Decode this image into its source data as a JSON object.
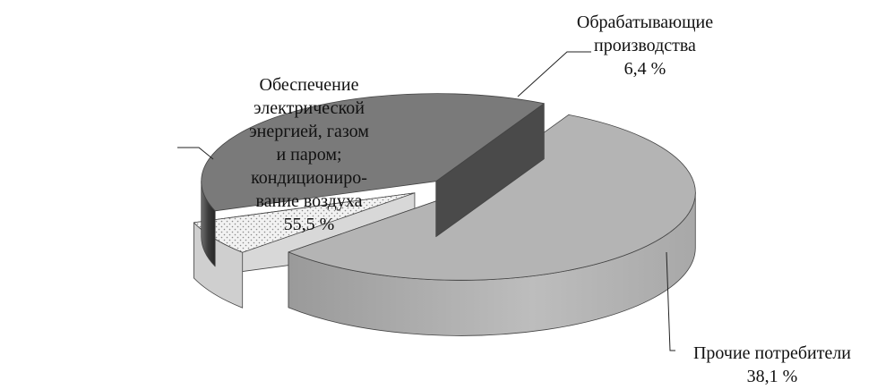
{
  "chart_data": {
    "type": "pie",
    "title": "",
    "slices": [
      {
        "label_lines": [
          "Обеспечение",
          "электрической",
          "энергией, газом",
          "и паром;",
          "кондициониро-",
          "вание воздуха"
        ],
        "value": 55.5,
        "value_label": "55,5  %",
        "color": "#b4b4b4"
      },
      {
        "label_lines": [
          "Обрабатывающие",
          "производства"
        ],
        "value": 6.4,
        "value_label": "6,4  %",
        "color": "#efefef"
      },
      {
        "label_lines": [
          "Прочие потребители"
        ],
        "value": 38.1,
        "value_label": "38,1 %",
        "color": "#7a7a7a"
      }
    ]
  }
}
